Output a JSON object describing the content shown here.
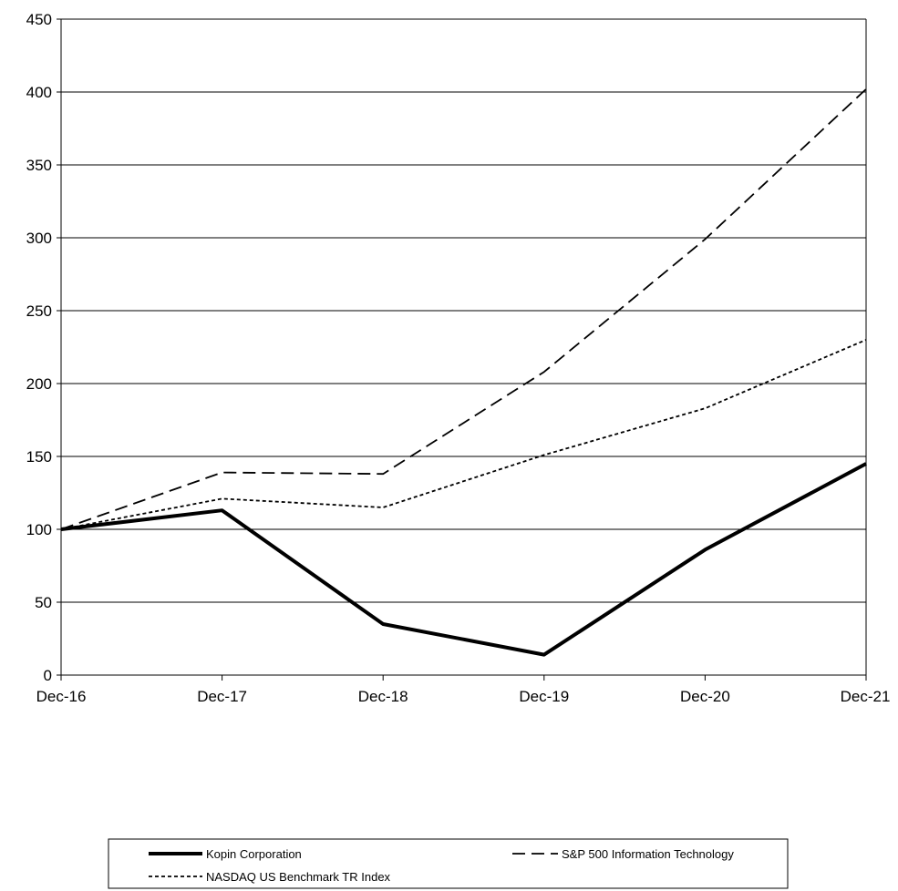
{
  "chart_data": {
    "type": "line",
    "title": "",
    "xlabel": "",
    "ylabel": "",
    "categories": [
      "Dec-16",
      "Dec-17",
      "Dec-18",
      "Dec-19",
      "Dec-20",
      "Dec-21"
    ],
    "ylim": [
      0,
      450
    ],
    "yticks": [
      0,
      50,
      100,
      150,
      200,
      250,
      300,
      350,
      400,
      450
    ],
    "grid": "horizontal",
    "legend_position": "bottom",
    "series": [
      {
        "name": "Kopin Corporation",
        "style": "solid-thick",
        "color": "#000000",
        "values": [
          100,
          113,
          35,
          14,
          86,
          145
        ]
      },
      {
        "name": "S&P 500 Information Technology",
        "style": "long-dash",
        "color": "#000000",
        "values": [
          100,
          139,
          138,
          208,
          299,
          402
        ]
      },
      {
        "name": "NASDAQ US Benchmark TR Index",
        "style": "short-dash",
        "color": "#000000",
        "values": [
          100,
          121,
          115,
          151,
          183,
          230
        ]
      }
    ]
  }
}
